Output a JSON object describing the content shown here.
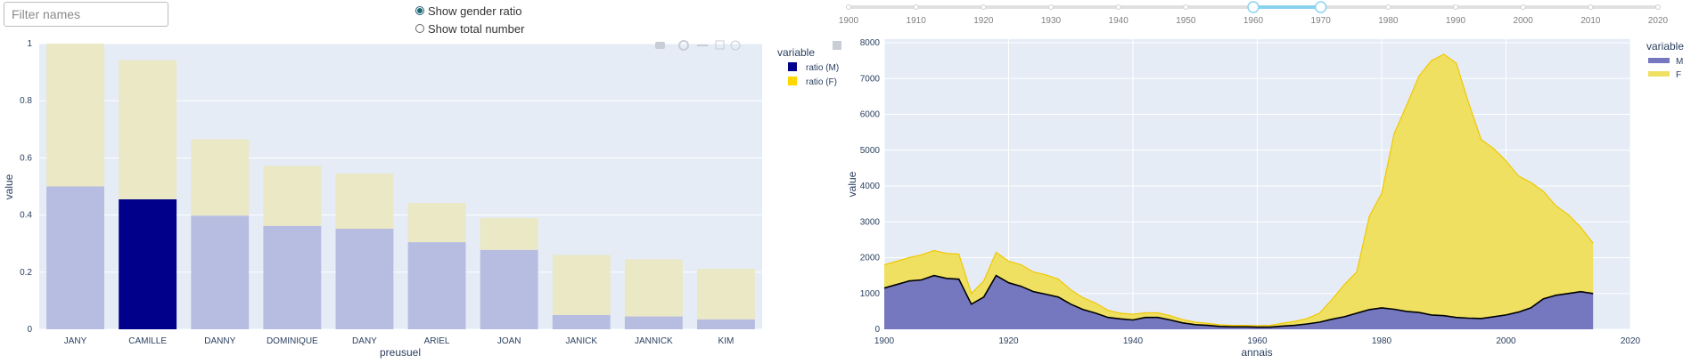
{
  "filter": {
    "placeholder": "Filter names",
    "value": ""
  },
  "radio": {
    "options": [
      {
        "label": "Show gender ratio",
        "selected": true
      },
      {
        "label": "Show total number",
        "selected": false
      }
    ]
  },
  "slider": {
    "ticks": [
      "1900",
      "1910",
      "1920",
      "1930",
      "1940",
      "1950",
      "1960",
      "1970",
      "1980",
      "1990",
      "2000",
      "2010",
      "2020"
    ],
    "range": [
      1960,
      1970
    ]
  },
  "chart_data": [
    {
      "type": "bar",
      "barmode": "stack",
      "categories": [
        "JANY",
        "CAMILLE",
        "DANNY",
        "DOMINIQUE",
        "DANY",
        "ARIEL",
        "JOAN",
        "JANICK",
        "JANNICK",
        "KIM"
      ],
      "series": [
        {
          "name": "ratio (M)",
          "color": "#00008b",
          "values": [
            0.5,
            0.455,
            0.398,
            0.362,
            0.352,
            0.305,
            0.278,
            0.05,
            0.045,
            0.035
          ]
        },
        {
          "name": "ratio (F)",
          "color": "#ffd700",
          "values": [
            0.5,
            0.487,
            0.267,
            0.21,
            0.193,
            0.137,
            0.112,
            0.21,
            0.2,
            0.177
          ]
        }
      ],
      "highlighted_category": "CAMILLE",
      "xlabel": "preusuel",
      "ylabel": "value",
      "ylim": [
        0,
        1
      ],
      "yticks": [
        "0",
        "0.2",
        "0.4",
        "0.6",
        "0.8",
        "1"
      ],
      "legend": {
        "title": "variable",
        "position": "top-right"
      },
      "grid": true
    },
    {
      "type": "area",
      "x_start": 1900,
      "x_step": 2,
      "series": [
        {
          "name": "M",
          "color": "#2a2a9a",
          "values": [
            1150,
            1250,
            1350,
            1380,
            1500,
            1420,
            1400,
            700,
            900,
            1500,
            1300,
            1200,
            1050,
            980,
            900,
            700,
            550,
            450,
            330,
            290,
            260,
            330,
            330,
            260,
            180,
            130,
            110,
            80,
            70,
            70,
            60,
            60,
            90,
            110,
            150,
            200,
            280,
            350,
            450,
            550,
            600,
            560,
            500,
            470,
            400,
            380,
            330,
            310,
            300,
            350,
            400,
            480,
            600,
            850,
            950,
            1000,
            1050,
            1000
          ]
        },
        {
          "name": "F",
          "color": "#f5d800",
          "values": [
            650,
            650,
            650,
            700,
            700,
            700,
            700,
            300,
            450,
            650,
            600,
            600,
            550,
            540,
            500,
            400,
            330,
            280,
            200,
            160,
            160,
            130,
            130,
            120,
            90,
            70,
            60,
            45,
            40,
            40,
            40,
            50,
            80,
            110,
            150,
            250,
            550,
            900,
            1150,
            2600,
            3200,
            4900,
            5750,
            6600,
            7100,
            7300,
            7100,
            6000,
            5000,
            4700,
            4300,
            3800,
            3500,
            3000,
            2500,
            2200,
            1800,
            1400
          ]
        }
      ],
      "xlabel": "annais",
      "ylabel": "value",
      "xlim": [
        1900,
        2020
      ],
      "ylim": [
        0,
        8100
      ],
      "xticks": [
        "1900",
        "1920",
        "1940",
        "1960",
        "1980",
        "2000",
        "2020"
      ],
      "yticks": [
        "0",
        "1000",
        "2000",
        "3000",
        "4000",
        "5000",
        "6000",
        "7000",
        "8000"
      ],
      "legend": {
        "title": "variable",
        "position": "top-right"
      },
      "grid": true
    }
  ]
}
